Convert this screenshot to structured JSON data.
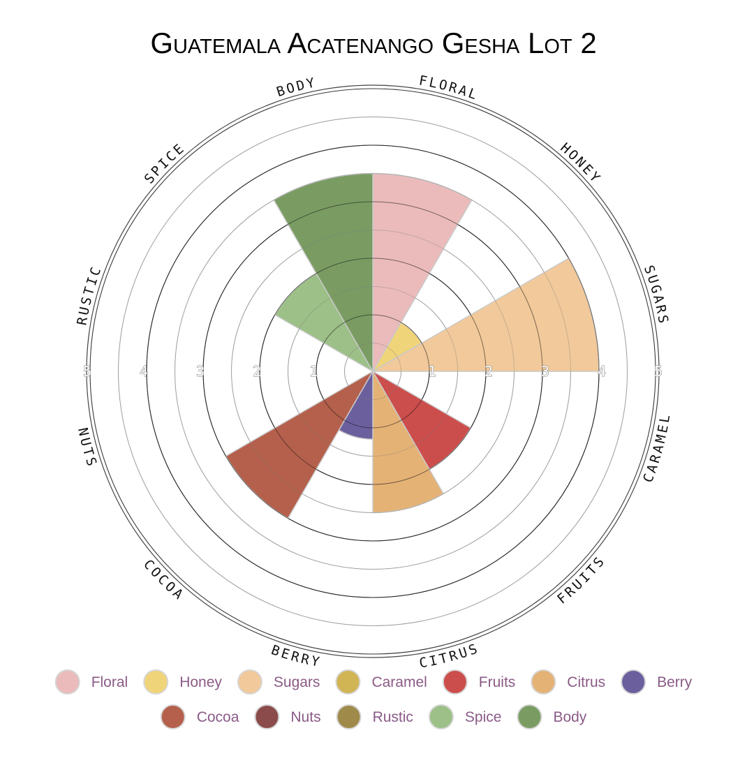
{
  "chart_data": {
    "type": "polar-area",
    "title": "Guatemala Acatenango Gesha Lot 2",
    "categories": [
      "Floral",
      "Honey",
      "Sugars",
      "Caramel",
      "Fruits",
      "Citrus",
      "Berry",
      "Cocoa",
      "Nuts",
      "Rustic",
      "Spice",
      "Body"
    ],
    "axis_labels": [
      "FLORAL",
      "HONEY",
      "SUGARS",
      "CARAMEL",
      "FRUITS",
      "CITRUS",
      "BERRY",
      "COCOA",
      "NUTS",
      "RUSTIC",
      "SPICE",
      "BODY"
    ],
    "values": [
      3.5,
      1.0,
      4.0,
      0,
      2.0,
      2.5,
      1.2,
      3.0,
      0,
      0,
      2.0,
      3.5
    ],
    "colors": [
      "#ebbbbb",
      "#f0d47a",
      "#f2c99a",
      "#d1b454",
      "#cc4e4c",
      "#e5b276",
      "#6c5f9e",
      "#b5604c",
      "#8b4b4a",
      "#a08a4a",
      "#9cc087",
      "#7a9c63"
    ],
    "rlim": [
      0,
      5
    ],
    "radial_ticks": [
      "1",
      "2",
      "3",
      "4",
      "5"
    ],
    "legend_position": "bottom",
    "grid": true
  }
}
